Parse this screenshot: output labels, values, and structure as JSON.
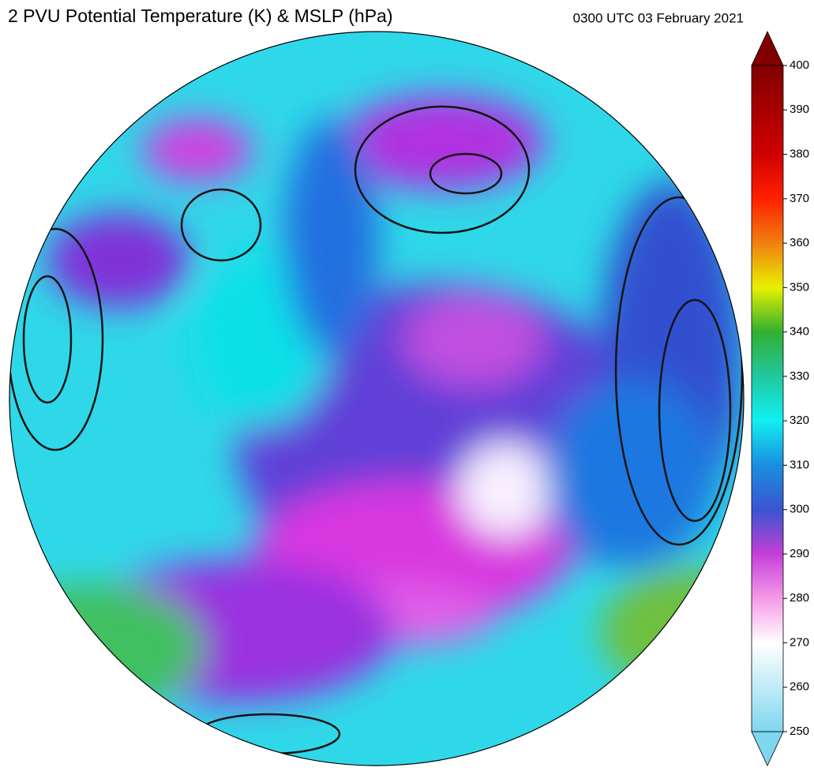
{
  "header": {
    "title": "2 PVU Potential Temperature (K) & MSLP (hPa)",
    "timestamp": "0300 UTC 03 February 2021"
  },
  "colorbar": {
    "lim": [
      250,
      400
    ],
    "ticks": [
      250,
      260,
      270,
      280,
      290,
      300,
      310,
      320,
      330,
      340,
      350,
      360,
      370,
      380,
      390,
      400
    ]
  }
}
